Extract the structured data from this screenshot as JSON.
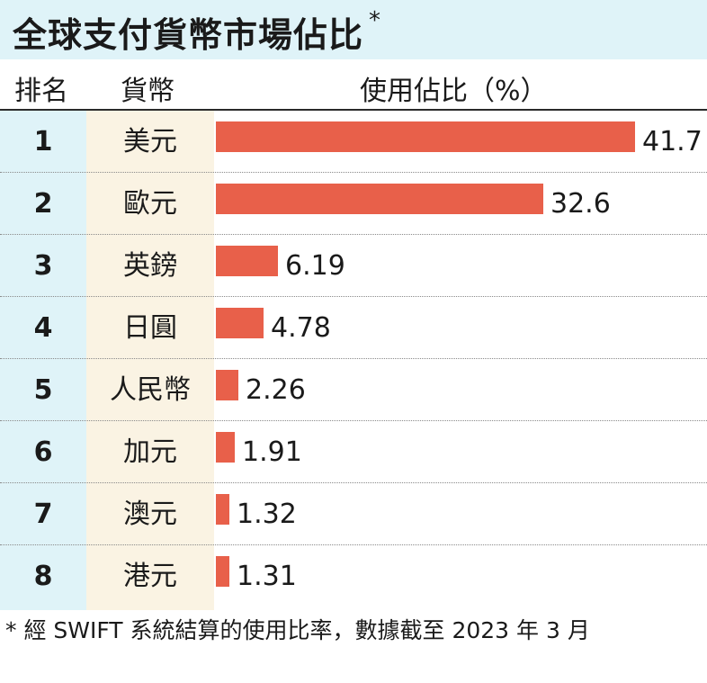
{
  "title": "全球支付貨幣市場佔比",
  "title_mark": "*",
  "headers": {
    "rank": "排名",
    "currency": "貨幣",
    "share": "使用佔比（%）"
  },
  "chart_data": {
    "type": "bar",
    "orientation": "horizontal",
    "categories": [
      "美元",
      "歐元",
      "英鎊",
      "日圓",
      "人民幣",
      "加元",
      "澳元",
      "港元"
    ],
    "ranks": [
      "1",
      "2",
      "3",
      "4",
      "5",
      "6",
      "7",
      "8"
    ],
    "values": [
      41.7,
      32.6,
      6.19,
      4.78,
      2.26,
      1.91,
      1.32,
      1.31
    ],
    "value_labels": [
      "41.7",
      "32.6",
      "6.19",
      "4.78",
      "2.26",
      "1.91",
      "1.32",
      "1.31"
    ],
    "xlim": [
      0,
      41.7
    ],
    "bar_color": "#e8604a"
  },
  "footnote": "* 經 SWIFT 系統結算的使用比率，數據截至 2023 年 3 月",
  "colors": {
    "header_bg": "#dff3f8",
    "currency_col_bg": "#faf3e3",
    "bar": "#e8604a"
  }
}
